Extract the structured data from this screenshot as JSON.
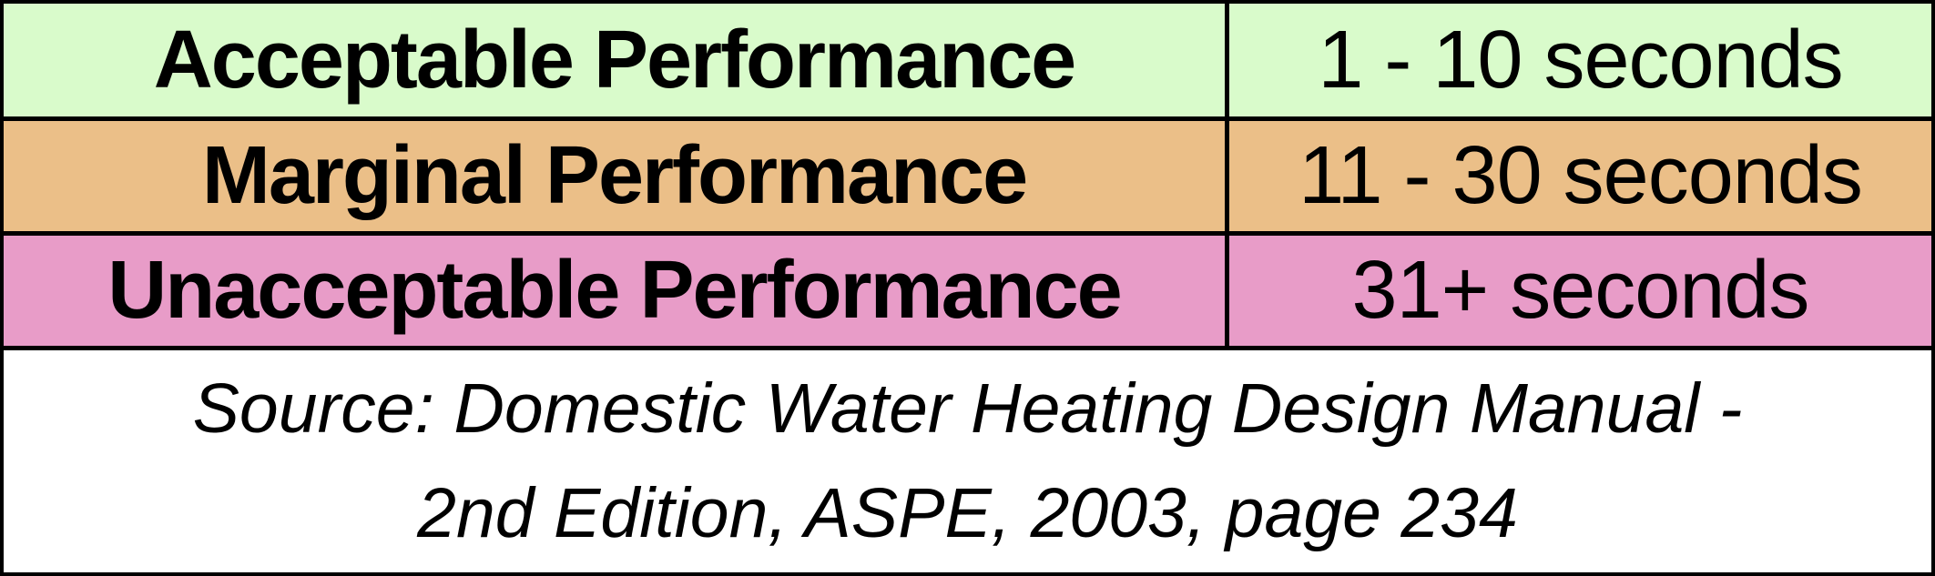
{
  "table": {
    "border_color": "#000000",
    "text_color": "#000000",
    "rows": [
      {
        "label": "Acceptable Performance",
        "value": "1 - 10 seconds",
        "color": "#D9FBCB"
      },
      {
        "label": "Marginal Performance",
        "value": "11 - 30 seconds",
        "color": "#EBBF88"
      },
      {
        "label": "Unacceptable Performance",
        "value": "31+ seconds",
        "color": "#E89CC8"
      }
    ]
  },
  "footer": {
    "line1": "Source: Domestic Water Heating Design Manual -",
    "line2": "2nd Edition, ASPE, 2003, page 234"
  }
}
